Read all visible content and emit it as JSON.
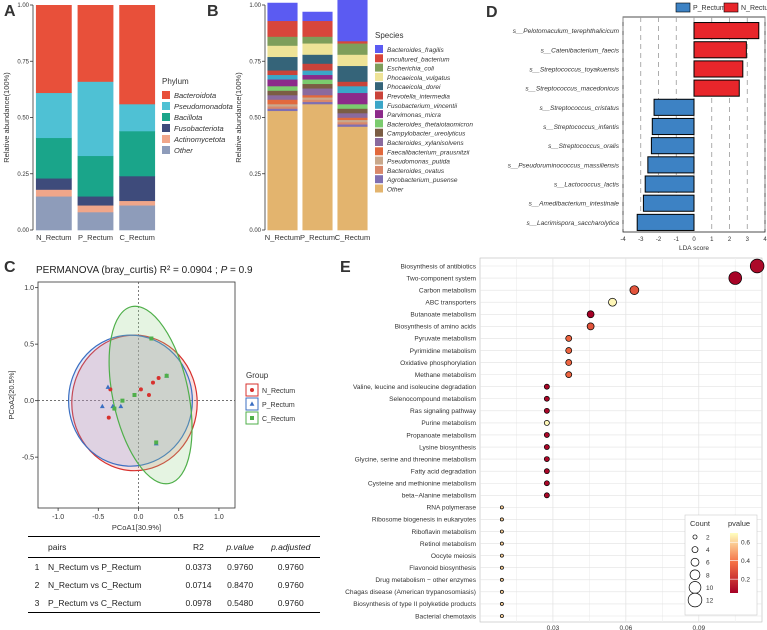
{
  "panel_labels": [
    "A",
    "B",
    "C",
    "D",
    "E"
  ],
  "chart_data": [
    {
      "id": "A",
      "type": "bar",
      "stacked": true,
      "ylabel": "Relative abundance(100%)",
      "yticks": [
        "0.00",
        "0.25",
        "0.50",
        "0.75",
        "1.00"
      ],
      "ylim": [
        0,
        1
      ],
      "categories": [
        "N_Rectum",
        "P_Rectum",
        "C_Rectum"
      ],
      "legend_title": "Phylum",
      "series": [
        {
          "name": "Other",
          "color": "#8E9CBA",
          "values": [
            0.15,
            0.08,
            0.11
          ]
        },
        {
          "name": "Actinomycetota",
          "color": "#F0A68A",
          "values": [
            0.03,
            0.03,
            0.02
          ]
        },
        {
          "name": "Fusobacteriota",
          "color": "#3E4B7B",
          "values": [
            0.05,
            0.04,
            0.11
          ]
        },
        {
          "name": "Bacillota",
          "color": "#1AA58A",
          "values": [
            0.18,
            0.18,
            0.2
          ]
        },
        {
          "name": "Pseudomonadota",
          "color": "#4FC1D4",
          "values": [
            0.2,
            0.33,
            0.12
          ]
        },
        {
          "name": "Bacteroidota",
          "color": "#E8503A",
          "values": [
            0.39,
            0.34,
            0.44
          ]
        }
      ],
      "legend_order": [
        "Bacteroidota",
        "Pseudomonadota",
        "Bacillota",
        "Fusobacteriota",
        "Actinomycetota",
        "Other"
      ]
    },
    {
      "id": "B",
      "type": "bar",
      "stacked": true,
      "ylabel": "Relative abundance(100%)",
      "yticks": [
        "0.00",
        "0.25",
        "0.50",
        "0.75",
        "1.00"
      ],
      "ylim": [
        0,
        1
      ],
      "categories": [
        "N_Rectum",
        "P_Rectum",
        "C_Rectum"
      ],
      "legend_title": "Species",
      "series": [
        {
          "name": "Other",
          "color": "#E3B46E",
          "values": [
            0.53,
            0.56,
            0.46
          ]
        },
        {
          "name": "Agrobacterium_pusense",
          "color": "#7F6FB2",
          "values": [
            0.01,
            0.01,
            0.01
          ]
        },
        {
          "name": "Bacteroides_ovatus",
          "color": "#D9886A",
          "values": [
            0.01,
            0.01,
            0.01
          ]
        },
        {
          "name": "Pseudomonas_putida",
          "color": "#C9A88C",
          "values": [
            0.01,
            0.01,
            0.01
          ]
        },
        {
          "name": "Faecalibacterium_prausnitzii",
          "color": "#E2693C",
          "values": [
            0.02,
            0.01,
            0.01
          ]
        },
        {
          "name": "Bacteroides_xylanisolvens",
          "color": "#8A6A9E",
          "values": [
            0.02,
            0.03,
            0.02
          ]
        },
        {
          "name": "Campylobacter_ureolyticus",
          "color": "#7B5D44",
          "values": [
            0.02,
            0.02,
            0.02
          ]
        },
        {
          "name": "Bacteroides_thetaiotaomicron",
          "color": "#7BCB6E",
          "values": [
            0.02,
            0.02,
            0.02
          ]
        },
        {
          "name": "Parvimonas_micra",
          "color": "#8C2A8A",
          "values": [
            0.03,
            0.02,
            0.05
          ]
        },
        {
          "name": "Fusobacterium_vincentii",
          "color": "#3BA6C8",
          "values": [
            0.02,
            0.02,
            0.03
          ]
        },
        {
          "name": "Prevotella_intermedia",
          "color": "#C9433A",
          "values": [
            0.02,
            0.03,
            0.02
          ]
        },
        {
          "name": "Phocaeicola_dorei",
          "color": "#356479",
          "values": [
            0.06,
            0.04,
            0.07
          ]
        },
        {
          "name": "Phocaeicola_vulgatus",
          "color": "#EEE397",
          "values": [
            0.05,
            0.05,
            0.05
          ]
        },
        {
          "name": "Escherichia_coli",
          "color": "#7E9E5A",
          "values": [
            0.04,
            0.03,
            0.05
          ]
        },
        {
          "name": "uncultured_bacterium",
          "color": "#D8463B",
          "values": [
            0.07,
            0.07,
            0.01
          ]
        },
        {
          "name": "Bacteroides_fragilis",
          "color": "#5B5BF2",
          "values": [
            0.08,
            0.04,
            0.23
          ]
        }
      ],
      "legend_order": [
        "Bacteroides_fragilis",
        "uncultured_bacterium",
        "Escherichia_coli",
        "Phocaeicola_vulgatus",
        "Phocaeicola_dorei",
        "Prevotella_intermedia",
        "Fusobacterium_vincentii",
        "Parvimonas_micra",
        "Bacteroides_thetaiotaomicron",
        "Campylobacter_ureolyticus",
        "Bacteroides_xylanisolvens",
        "Faecalibacterium_prausnitzii",
        "Pseudomonas_putida",
        "Bacteroides_ovatus",
        "Agrobacterium_pusense",
        "Other"
      ]
    },
    {
      "id": "C",
      "type": "scatter",
      "title": "PERMANOVA (bray_curtis) R² = 0.0904 ; P = 0.9",
      "title_parts": [
        "PERMANOVA (bray_curtis) R² = 0.0904 ; ",
        "P",
        " = 0.9"
      ],
      "xlabel": "PCoA1[30.9%]",
      "ylabel": "PCoA2[20.5%]",
      "xticks": [
        -1.0,
        -0.5,
        0.0,
        0.5,
        1.0
      ],
      "xtick_labels": [
        "-1.0",
        "-0.5",
        "0.0",
        "0.5",
        "1.0"
      ],
      "yticks": [
        -0.5,
        0.0,
        0.5,
        1.0
      ],
      "ytick_labels": [
        "-0.5",
        "0.0",
        "0.5",
        "1.0"
      ],
      "xlim": [
        -1.25,
        1.2
      ],
      "ylim": [
        -0.95,
        1.05
      ],
      "legend_title": "Group",
      "groups": [
        {
          "name": "N_Rectum",
          "color": "#D7312E",
          "marker": "circle",
          "points": [
            [
              -0.35,
              0.1
            ],
            [
              -0.37,
              -0.15
            ],
            [
              0.18,
              0.16
            ],
            [
              0.13,
              0.05
            ],
            [
              0.25,
              0.2
            ],
            [
              0.03,
              0.1
            ]
          ],
          "ellipse": {
            "cx": -0.05,
            "cy": -0.02,
            "rx": 0.78,
            "ry": 0.6,
            "angle": 0
          }
        },
        {
          "name": "P_Rectum",
          "color": "#3B6FC2",
          "marker": "triangle",
          "points": [
            [
              -0.45,
              -0.05
            ],
            [
              -0.32,
              -0.05
            ],
            [
              0.35,
              0.22
            ],
            [
              0.22,
              -0.38
            ],
            [
              -0.22,
              -0.05
            ],
            [
              -0.38,
              0.12
            ]
          ],
          "ellipse": {
            "cx": -0.1,
            "cy": 0.0,
            "rx": 0.77,
            "ry": 0.58,
            "angle": 0
          }
        },
        {
          "name": "C_Rectum",
          "color": "#4FAF4A",
          "marker": "square",
          "points": [
            [
              0.16,
              0.55
            ],
            [
              0.35,
              0.22
            ],
            [
              -0.2,
              0.0
            ],
            [
              -0.3,
              -0.07
            ],
            [
              0.22,
              -0.37
            ],
            [
              -0.05,
              0.05
            ]
          ],
          "ellipse": {
            "cx": 0.15,
            "cy": 0.05,
            "rx": 0.47,
            "ry": 0.8,
            "angle": -12
          }
        }
      ],
      "table": {
        "columns": [
          "",
          "pairs",
          "R2",
          "p.value",
          "p.adjusted"
        ],
        "rows": [
          {
            "idx": "1",
            "pair": "N_Rectum vs P_Rectum",
            "r2": "0.0373",
            "p": "0.9760",
            "padj": "0.9760"
          },
          {
            "idx": "2",
            "pair": "N_Rectum vs C_Rectum",
            "r2": "0.0714",
            "p": "0.8470",
            "padj": "0.9760"
          },
          {
            "idx": "3",
            "pair": "P_Rectum vs C_Rectum",
            "r2": "0.0978",
            "p": "0.5480",
            "padj": "0.9760"
          }
        ]
      }
    },
    {
      "id": "D",
      "type": "bar",
      "orientation": "horizontal",
      "xlabel": "LDA score",
      "xlim": [
        -4,
        4
      ],
      "xticks": [
        -4,
        -3,
        -2,
        -1,
        0,
        1,
        2,
        3,
        4
      ],
      "legend": [
        {
          "name": "P_Rectum",
          "color": "#3D82C4"
        },
        {
          "name": "N_Rectum",
          "color": "#E8262B"
        }
      ],
      "categories": [
        "s__Pelotomaculum_terephthalicicum",
        "s__Catenibacterium_faecis",
        "s__Streptococcus_toyakuensis",
        "s__Streptococcus_macedonicus",
        "s__Streptococcus_cristatus",
        "s__Streptococcus_infantis",
        "s__Streptococcus_oralis",
        "s__Pseudoruminococcus_massiliensis",
        "s__Lactococcus_lactis",
        "s__Amedibacterium_intestinale",
        "s__Lacrimispora_saccharolytica"
      ],
      "values": [
        3.65,
        2.95,
        2.75,
        2.55,
        -2.25,
        -2.35,
        -2.4,
        -2.6,
        -2.75,
        -2.85,
        -3.2
      ],
      "groups": [
        "N_Rectum",
        "N_Rectum",
        "N_Rectum",
        "N_Rectum",
        "P_Rectum",
        "P_Rectum",
        "P_Rectum",
        "P_Rectum",
        "P_Rectum",
        "P_Rectum",
        "P_Rectum"
      ]
    },
    {
      "id": "E",
      "type": "scatter",
      "subtype": "enrichment-dotplot",
      "xlim": [
        0.0,
        0.116
      ],
      "xticks": [
        0.03,
        0.06,
        0.09
      ],
      "xtick_labels": [
        "0.03",
        "0.06",
        "0.09"
      ],
      "size_legend_title": "Count",
      "size_legend_values": [
        2,
        4,
        6,
        8,
        10,
        12
      ],
      "color_legend_title": "pvalue",
      "color_legend_ticks": [
        0.2,
        0.4,
        0.6
      ],
      "color_legend_tick_labels": [
        "0.2",
        "0.4",
        "0.6"
      ],
      "color_scale": {
        "low": "#A50026",
        "mid": "#F46D43",
        "high": "#FFFFBF",
        "min": 0.05,
        "max": 0.7
      },
      "categories": [
        "Biosynthesis of antibiotics",
        "Two-component system",
        "Carbon metabolism",
        "ABC transporters",
        "Butanoate metabolism",
        "Biosynthesis of amino acids",
        "Pyruvate metabolism",
        "Pyrimidine metabolism",
        "Oxidative phosphorylation",
        "Methane metabolism",
        "Valine, leucine and isoleucine degradation",
        "Selenocompound metabolism",
        "Ras signaling pathway",
        "Purine metabolism",
        "Propanoate metabolism",
        "Lysine biosynthesis",
        "Glycine, serine and threonine metabolism",
        "Fatty acid degradation",
        "Cysteine and methionine metabolism",
        "beta−Alanine metabolism",
        "RNA polymerase",
        "Ribosome biogenesis in eukaryotes",
        "Riboflavin metabolism",
        "Retinol metabolism",
        "Oocyte meiosis",
        "Flavonoid biosynthesis",
        "Drug metabolism − other enzymes",
        "Chagas disease (American trypanosomiasis)",
        "Biosynthesis of type II polyketide products",
        "Bacterial chemotaxis"
      ],
      "x": [
        0.114,
        0.105,
        0.0635,
        0.0545,
        0.0455,
        0.0455,
        0.0365,
        0.0365,
        0.0365,
        0.0365,
        0.0275,
        0.0275,
        0.0275,
        0.0275,
        0.0275,
        0.0275,
        0.0275,
        0.0275,
        0.0275,
        0.0275,
        0.009,
        0.009,
        0.009,
        0.009,
        0.009,
        0.009,
        0.009,
        0.009,
        0.009,
        0.009
      ],
      "count": [
        12,
        11,
        7,
        6,
        5,
        5,
        4,
        4,
        4,
        4,
        3,
        3,
        3,
        3,
        3,
        3,
        3,
        3,
        3,
        3,
        1,
        1,
        1,
        1,
        1,
        1,
        1,
        1,
        1,
        1
      ],
      "pvalue": [
        0.08,
        0.06,
        0.3,
        0.68,
        0.05,
        0.3,
        0.35,
        0.35,
        0.35,
        0.35,
        0.07,
        0.07,
        0.07,
        0.68,
        0.07,
        0.07,
        0.07,
        0.07,
        0.07,
        0.07,
        0.6,
        0.6,
        0.6,
        0.6,
        0.6,
        0.6,
        0.6,
        0.6,
        0.6,
        0.6
      ]
    }
  ]
}
